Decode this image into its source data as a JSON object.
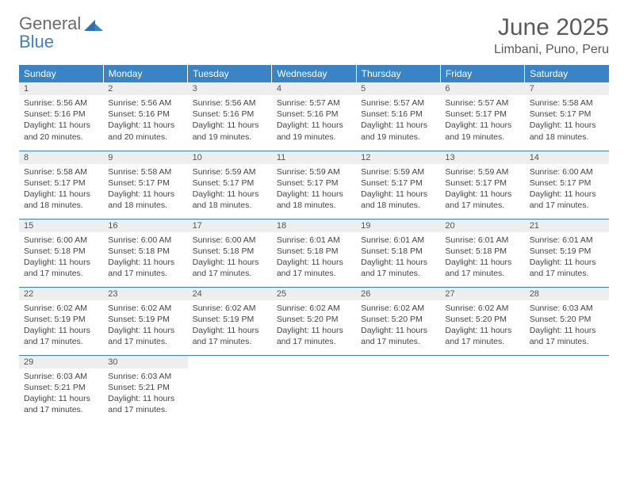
{
  "logo": {
    "line1": "General",
    "line2": "Blue"
  },
  "title": "June 2025",
  "location": "Limbani, Puno, Peru",
  "colors": {
    "header_bg": "#3a83c5",
    "header_text": "#ffffff",
    "daynum_bg": "#eeeeee",
    "row_border": "#3a83c5",
    "text": "#444444",
    "title_text": "#5a5a5a",
    "logo_gray": "#6b6b6b",
    "logo_blue": "#3a83c5"
  },
  "typography": {
    "title_fontsize": 30,
    "location_fontsize": 16,
    "header_fontsize": 12,
    "daynum_fontsize": 11,
    "body_fontsize": 10.5,
    "logo_fontsize": 22
  },
  "weekdays": [
    "Sunday",
    "Monday",
    "Tuesday",
    "Wednesday",
    "Thursday",
    "Friday",
    "Saturday"
  ],
  "days": [
    {
      "n": 1,
      "sunrise": "5:56 AM",
      "sunset": "5:16 PM",
      "dh": 11,
      "dm": 20
    },
    {
      "n": 2,
      "sunrise": "5:56 AM",
      "sunset": "5:16 PM",
      "dh": 11,
      "dm": 20
    },
    {
      "n": 3,
      "sunrise": "5:56 AM",
      "sunset": "5:16 PM",
      "dh": 11,
      "dm": 19
    },
    {
      "n": 4,
      "sunrise": "5:57 AM",
      "sunset": "5:16 PM",
      "dh": 11,
      "dm": 19
    },
    {
      "n": 5,
      "sunrise": "5:57 AM",
      "sunset": "5:16 PM",
      "dh": 11,
      "dm": 19
    },
    {
      "n": 6,
      "sunrise": "5:57 AM",
      "sunset": "5:17 PM",
      "dh": 11,
      "dm": 19
    },
    {
      "n": 7,
      "sunrise": "5:58 AM",
      "sunset": "5:17 PM",
      "dh": 11,
      "dm": 18
    },
    {
      "n": 8,
      "sunrise": "5:58 AM",
      "sunset": "5:17 PM",
      "dh": 11,
      "dm": 18
    },
    {
      "n": 9,
      "sunrise": "5:58 AM",
      "sunset": "5:17 PM",
      "dh": 11,
      "dm": 18
    },
    {
      "n": 10,
      "sunrise": "5:59 AM",
      "sunset": "5:17 PM",
      "dh": 11,
      "dm": 18
    },
    {
      "n": 11,
      "sunrise": "5:59 AM",
      "sunset": "5:17 PM",
      "dh": 11,
      "dm": 18
    },
    {
      "n": 12,
      "sunrise": "5:59 AM",
      "sunset": "5:17 PM",
      "dh": 11,
      "dm": 18
    },
    {
      "n": 13,
      "sunrise": "5:59 AM",
      "sunset": "5:17 PM",
      "dh": 11,
      "dm": 17
    },
    {
      "n": 14,
      "sunrise": "6:00 AM",
      "sunset": "5:17 PM",
      "dh": 11,
      "dm": 17
    },
    {
      "n": 15,
      "sunrise": "6:00 AM",
      "sunset": "5:18 PM",
      "dh": 11,
      "dm": 17
    },
    {
      "n": 16,
      "sunrise": "6:00 AM",
      "sunset": "5:18 PM",
      "dh": 11,
      "dm": 17
    },
    {
      "n": 17,
      "sunrise": "6:00 AM",
      "sunset": "5:18 PM",
      "dh": 11,
      "dm": 17
    },
    {
      "n": 18,
      "sunrise": "6:01 AM",
      "sunset": "5:18 PM",
      "dh": 11,
      "dm": 17
    },
    {
      "n": 19,
      "sunrise": "6:01 AM",
      "sunset": "5:18 PM",
      "dh": 11,
      "dm": 17
    },
    {
      "n": 20,
      "sunrise": "6:01 AM",
      "sunset": "5:18 PM",
      "dh": 11,
      "dm": 17
    },
    {
      "n": 21,
      "sunrise": "6:01 AM",
      "sunset": "5:19 PM",
      "dh": 11,
      "dm": 17
    },
    {
      "n": 22,
      "sunrise": "6:02 AM",
      "sunset": "5:19 PM",
      "dh": 11,
      "dm": 17
    },
    {
      "n": 23,
      "sunrise": "6:02 AM",
      "sunset": "5:19 PM",
      "dh": 11,
      "dm": 17
    },
    {
      "n": 24,
      "sunrise": "6:02 AM",
      "sunset": "5:19 PM",
      "dh": 11,
      "dm": 17
    },
    {
      "n": 25,
      "sunrise": "6:02 AM",
      "sunset": "5:20 PM",
      "dh": 11,
      "dm": 17
    },
    {
      "n": 26,
      "sunrise": "6:02 AM",
      "sunset": "5:20 PM",
      "dh": 11,
      "dm": 17
    },
    {
      "n": 27,
      "sunrise": "6:02 AM",
      "sunset": "5:20 PM",
      "dh": 11,
      "dm": 17
    },
    {
      "n": 28,
      "sunrise": "6:03 AM",
      "sunset": "5:20 PM",
      "dh": 11,
      "dm": 17
    },
    {
      "n": 29,
      "sunrise": "6:03 AM",
      "sunset": "5:21 PM",
      "dh": 11,
      "dm": 17
    },
    {
      "n": 30,
      "sunrise": "6:03 AM",
      "sunset": "5:21 PM",
      "dh": 11,
      "dm": 17
    }
  ],
  "labels": {
    "sunrise": "Sunrise:",
    "sunset": "Sunset:",
    "daylight_prefix": "Daylight:",
    "hours_word": "hours",
    "and_word": "and",
    "minutes_word": "minutes."
  }
}
